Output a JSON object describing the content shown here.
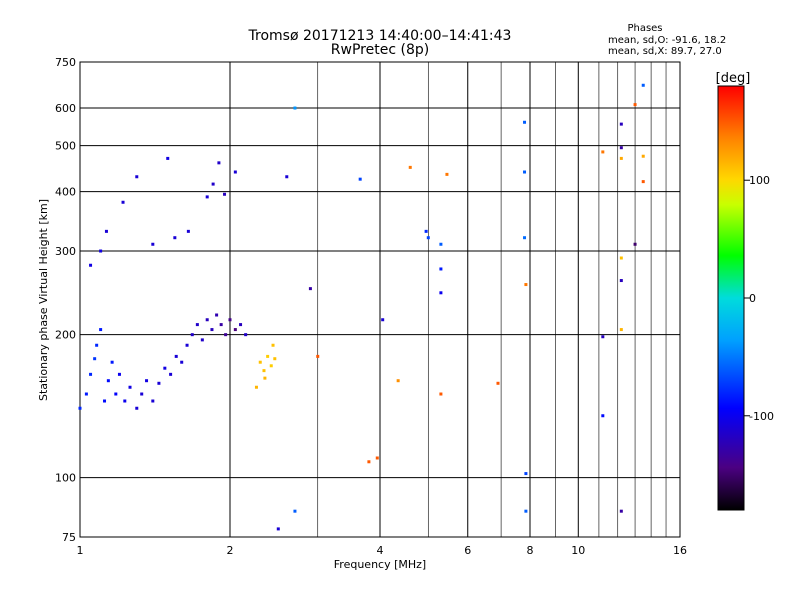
{
  "header": {
    "title_line1": "Tromsø 20171213 14:40:00–14:41:43",
    "title_line2": "RwPretec (8p)",
    "phases_title": "Phases",
    "phases_line1": "mean, sd,O: -91.6, 18.2",
    "phases_line2": "mean, sd,X:  89.7, 27.0"
  },
  "colorbar": {
    "unit": "[deg]",
    "min": -180,
    "max": 180,
    "ticks": [
      {
        "v": 100,
        "label": "100"
      },
      {
        "v": 0,
        "label": "0"
      },
      {
        "v": -100,
        "label": "-100"
      }
    ]
  },
  "chart_data": {
    "type": "scatter",
    "xlabel": "Frequency [MHz]",
    "ylabel": "Stationary phase Virtual Height [km]",
    "xscale": "log",
    "yscale": "log",
    "xlim": [
      1,
      16
    ],
    "ylim": [
      75,
      750
    ],
    "x_ticks": [
      {
        "v": 1,
        "label": "1"
      },
      {
        "v": 2,
        "label": "2"
      },
      {
        "v": 4,
        "label": "4"
      },
      {
        "v": 6,
        "label": "6"
      },
      {
        "v": 8,
        "label": "8"
      },
      {
        "v": 10,
        "label": "10"
      },
      {
        "v": 16,
        "label": "16"
      }
    ],
    "y_ticks": [
      {
        "v": 75,
        "label": "75"
      },
      {
        "v": 100,
        "label": "100"
      },
      {
        "v": 200,
        "label": "200"
      },
      {
        "v": 300,
        "label": "300"
      },
      {
        "v": 400,
        "label": "400"
      },
      {
        "v": 500,
        "label": "500"
      },
      {
        "v": 600,
        "label": "600"
      },
      {
        "v": 750,
        "label": "750"
      }
    ],
    "x_grid": [
      1,
      2,
      3,
      4,
      5,
      6,
      7,
      8,
      9,
      10,
      11,
      12,
      13,
      14,
      15,
      16
    ],
    "x_grid_major": [
      1,
      2,
      4,
      6,
      8,
      10,
      16
    ],
    "y_grid": [
      100,
      200,
      300,
      400,
      500,
      600
    ],
    "grid": true,
    "point_series": [
      {
        "x": 1.0,
        "y": 140,
        "phase": -80
      },
      {
        "x": 1.03,
        "y": 150,
        "phase": -85
      },
      {
        "x": 1.05,
        "y": 165,
        "phase": -80
      },
      {
        "x": 1.07,
        "y": 178,
        "phase": -75
      },
      {
        "x": 1.08,
        "y": 190,
        "phase": -80
      },
      {
        "x": 1.1,
        "y": 205,
        "phase": -85
      },
      {
        "x": 1.12,
        "y": 145,
        "phase": -90
      },
      {
        "x": 1.14,
        "y": 160,
        "phase": -90
      },
      {
        "x": 1.16,
        "y": 175,
        "phase": -85
      },
      {
        "x": 1.18,
        "y": 150,
        "phase": -95
      },
      {
        "x": 1.2,
        "y": 165,
        "phase": -100
      },
      {
        "x": 1.23,
        "y": 145,
        "phase": -100
      },
      {
        "x": 1.26,
        "y": 155,
        "phase": -105
      },
      {
        "x": 1.3,
        "y": 140,
        "phase": -110
      },
      {
        "x": 1.33,
        "y": 150,
        "phase": -110
      },
      {
        "x": 1.36,
        "y": 160,
        "phase": -105
      },
      {
        "x": 1.4,
        "y": 145,
        "phase": -110
      },
      {
        "x": 1.44,
        "y": 158,
        "phase": -110
      },
      {
        "x": 1.48,
        "y": 170,
        "phase": -105
      },
      {
        "x": 1.52,
        "y": 165,
        "phase": -110
      },
      {
        "x": 1.56,
        "y": 180,
        "phase": -110
      },
      {
        "x": 1.6,
        "y": 175,
        "phase": -110
      },
      {
        "x": 1.64,
        "y": 190,
        "phase": -110
      },
      {
        "x": 1.68,
        "y": 200,
        "phase": -115
      },
      {
        "x": 1.72,
        "y": 210,
        "phase": -115
      },
      {
        "x": 1.76,
        "y": 195,
        "phase": -115
      },
      {
        "x": 1.8,
        "y": 215,
        "phase": -120
      },
      {
        "x": 1.84,
        "y": 205,
        "phase": -120
      },
      {
        "x": 1.88,
        "y": 220,
        "phase": -125
      },
      {
        "x": 1.92,
        "y": 210,
        "phase": -130
      },
      {
        "x": 1.96,
        "y": 200,
        "phase": -135
      },
      {
        "x": 2.0,
        "y": 215,
        "phase": -140
      },
      {
        "x": 2.05,
        "y": 205,
        "phase": -145
      },
      {
        "x": 2.1,
        "y": 210,
        "phase": -120
      },
      {
        "x": 2.15,
        "y": 200,
        "phase": -115
      },
      {
        "x": 1.05,
        "y": 280,
        "phase": -105
      },
      {
        "x": 1.1,
        "y": 300,
        "phase": -105
      },
      {
        "x": 1.13,
        "y": 330,
        "phase": -110
      },
      {
        "x": 1.22,
        "y": 380,
        "phase": -110
      },
      {
        "x": 1.3,
        "y": 430,
        "phase": -110
      },
      {
        "x": 1.4,
        "y": 310,
        "phase": -110
      },
      {
        "x": 1.5,
        "y": 470,
        "phase": -105
      },
      {
        "x": 1.55,
        "y": 320,
        "phase": -110
      },
      {
        "x": 1.65,
        "y": 330,
        "phase": -110
      },
      {
        "x": 1.8,
        "y": 390,
        "phase": -110
      },
      {
        "x": 1.85,
        "y": 415,
        "phase": -115
      },
      {
        "x": 1.9,
        "y": 460,
        "phase": -115
      },
      {
        "x": 1.95,
        "y": 395,
        "phase": -120
      },
      {
        "x": 2.05,
        "y": 440,
        "phase": -110
      },
      {
        "x": 2.3,
        "y": 175,
        "phase": 110
      },
      {
        "x": 2.34,
        "y": 168,
        "phase": 110
      },
      {
        "x": 2.38,
        "y": 180,
        "phase": 105
      },
      {
        "x": 2.42,
        "y": 172,
        "phase": 105
      },
      {
        "x": 2.44,
        "y": 190,
        "phase": 110
      },
      {
        "x": 2.35,
        "y": 162,
        "phase": 115
      },
      {
        "x": 2.26,
        "y": 155,
        "phase": 115
      },
      {
        "x": 2.46,
        "y": 178,
        "phase": 110
      },
      {
        "x": 2.6,
        "y": 430,
        "phase": -110
      },
      {
        "x": 2.7,
        "y": 600,
        "phase": -40
      },
      {
        "x": 2.9,
        "y": 250,
        "phase": -130
      },
      {
        "x": 3.0,
        "y": 180,
        "phase": 150
      },
      {
        "x": 2.7,
        "y": 85,
        "phase": -60
      },
      {
        "x": 2.5,
        "y": 78,
        "phase": -110
      },
      {
        "x": 3.65,
        "y": 425,
        "phase": -70
      },
      {
        "x": 4.05,
        "y": 215,
        "phase": -110
      },
      {
        "x": 3.8,
        "y": 108,
        "phase": 150
      },
      {
        "x": 3.95,
        "y": 110,
        "phase": 150
      },
      {
        "x": 4.35,
        "y": 160,
        "phase": 130
      },
      {
        "x": 4.6,
        "y": 450,
        "phase": 140
      },
      {
        "x": 4.95,
        "y": 330,
        "phase": -80
      },
      {
        "x": 5.0,
        "y": 320,
        "phase": -70
      },
      {
        "x": 5.3,
        "y": 310,
        "phase": -60
      },
      {
        "x": 5.3,
        "y": 275,
        "phase": -85
      },
      {
        "x": 5.3,
        "y": 245,
        "phase": -100
      },
      {
        "x": 5.3,
        "y": 150,
        "phase": 150
      },
      {
        "x": 5.45,
        "y": 435,
        "phase": 140
      },
      {
        "x": 6.9,
        "y": 158,
        "phase": 150
      },
      {
        "x": 7.8,
        "y": 560,
        "phase": -60
      },
      {
        "x": 7.8,
        "y": 440,
        "phase": -60
      },
      {
        "x": 7.8,
        "y": 320,
        "phase": -55
      },
      {
        "x": 7.85,
        "y": 255,
        "phase": 140
      },
      {
        "x": 7.85,
        "y": 102,
        "phase": -70
      },
      {
        "x": 7.85,
        "y": 85,
        "phase": -60
      },
      {
        "x": 11.2,
        "y": 485,
        "phase": 140
      },
      {
        "x": 11.2,
        "y": 198,
        "phase": -120
      },
      {
        "x": 11.2,
        "y": 135,
        "phase": -90
      },
      {
        "x": 12.2,
        "y": 555,
        "phase": -120
      },
      {
        "x": 12.2,
        "y": 495,
        "phase": -130
      },
      {
        "x": 12.2,
        "y": 470,
        "phase": 120
      },
      {
        "x": 12.2,
        "y": 290,
        "phase": 110
      },
      {
        "x": 12.2,
        "y": 260,
        "phase": -120
      },
      {
        "x": 12.2,
        "y": 205,
        "phase": 115
      },
      {
        "x": 12.2,
        "y": 85,
        "phase": -130
      },
      {
        "x": 13.0,
        "y": 610,
        "phase": 150
      },
      {
        "x": 13.0,
        "y": 310,
        "phase": -150
      },
      {
        "x": 13.5,
        "y": 670,
        "phase": -60
      },
      {
        "x": 13.5,
        "y": 475,
        "phase": 120
      },
      {
        "x": 13.5,
        "y": 420,
        "phase": 150
      }
    ]
  }
}
